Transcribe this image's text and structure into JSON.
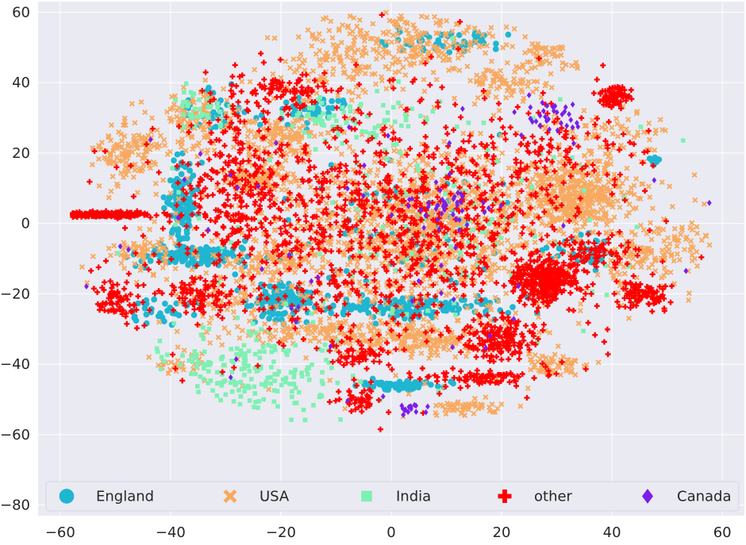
{
  "chart_data": {
    "type": "scatter",
    "title": "",
    "xlabel": "",
    "ylabel": "",
    "xlim": [
      -64,
      64
    ],
    "ylim": [
      -83,
      63
    ],
    "xticks": [
      -60,
      -40,
      -20,
      0,
      20,
      40,
      60
    ],
    "yticks": [
      -80,
      -60,
      -40,
      -20,
      0,
      20,
      40,
      60
    ],
    "xtick_labels": [
      "−60",
      "−40",
      "−20",
      "0",
      "20",
      "40",
      "60"
    ],
    "ytick_labels": [
      "−80",
      "−60",
      "−40",
      "−20",
      "0",
      "20",
      "40",
      "60"
    ],
    "background": "#eaeaf2",
    "grid": true,
    "legend_position": "bottom",
    "series": [
      {
        "name": "England",
        "color": "#1fb6d1",
        "marker": "circle",
        "clusters": [
          {
            "cx": -38,
            "cy": 5,
            "sx": 1.3,
            "sy": 6,
            "n": 120
          },
          {
            "cx": -35,
            "cy": -9,
            "sx": 5,
            "sy": 1.5,
            "n": 140
          },
          {
            "cx": -20,
            "cy": -22,
            "sx": 2.5,
            "sy": 2.5,
            "n": 120
          },
          {
            "cx": 2,
            "cy": -24,
            "sx": 9,
            "sy": 1.5,
            "n": 160
          },
          {
            "cx": 2,
            "cy": -46,
            "sx": 4,
            "sy": 0.6,
            "n": 60
          },
          {
            "cx": 10,
            "cy": 52,
            "sx": 6,
            "sy": 2,
            "n": 50
          },
          {
            "cx": -14,
            "cy": 32,
            "sx": 3,
            "sy": 2,
            "n": 40
          },
          {
            "cx": -32,
            "cy": 32,
            "sx": 3,
            "sy": 3,
            "n": 40
          },
          {
            "cx": 48,
            "cy": 18,
            "sx": 0.6,
            "sy": 0.6,
            "n": 12
          },
          {
            "cx": 35,
            "cy": -8,
            "sx": 3,
            "sy": 2,
            "n": 40
          },
          {
            "cx": -42,
            "cy": -25,
            "sx": 3,
            "sy": 2,
            "n": 30
          },
          {
            "cx": 3,
            "cy": 0,
            "sx": 12,
            "sy": 10,
            "n": 80
          }
        ]
      },
      {
        "name": "USA",
        "color": "#f8a95f",
        "marker": "x",
        "clusters": [
          {
            "cx": 5,
            "cy": 0,
            "sx": 12,
            "sy": 11,
            "n": 900
          },
          {
            "cx": 34,
            "cy": 8,
            "sx": 5,
            "sy": 5,
            "n": 420
          },
          {
            "cx": -48,
            "cy": 20,
            "sx": 4,
            "sy": 4,
            "n": 140
          },
          {
            "cx": -24,
            "cy": 12,
            "sx": 3,
            "sy": 2,
            "n": 110
          },
          {
            "cx": -20,
            "cy": 24,
            "sx": 4,
            "sy": 3,
            "n": 120
          },
          {
            "cx": -35,
            "cy": 30,
            "sx": 3,
            "sy": 4,
            "n": 100
          },
          {
            "cx": 3,
            "cy": 52,
            "sx": 8,
            "sy": 5,
            "n": 220
          },
          {
            "cx": -12,
            "cy": -31,
            "sx": 6,
            "sy": 1.5,
            "n": 120
          },
          {
            "cx": 5,
            "cy": -33,
            "sx": 5,
            "sy": 2.5,
            "n": 160
          },
          {
            "cx": 14,
            "cy": -52,
            "sx": 3,
            "sy": 1.2,
            "n": 50
          },
          {
            "cx": 28,
            "cy": 48,
            "sx": 3,
            "sy": 2,
            "n": 50
          },
          {
            "cx": -20,
            "cy": -10,
            "sx": 3,
            "sy": 2,
            "n": 80
          },
          {
            "cx": 45,
            "cy": -10,
            "sx": 4,
            "sy": 3,
            "n": 80
          },
          {
            "cx": 30,
            "cy": -40,
            "sx": 3,
            "sy": 2,
            "n": 60
          },
          {
            "cx": 20,
            "cy": 40,
            "sx": 5,
            "sy": 3,
            "n": 80
          },
          {
            "cx": -45,
            "cy": -8,
            "sx": 4,
            "sy": 2,
            "n": 50
          },
          {
            "cx": -40,
            "cy": -40,
            "sx": 3,
            "sy": 2,
            "n": 40
          },
          {
            "cx": 52,
            "cy": -5,
            "sx": 3,
            "sy": 4,
            "n": 50
          },
          {
            "cx": -28,
            "cy": -20,
            "sx": 6,
            "sy": 6,
            "n": 100
          },
          {
            "cx": 40,
            "cy": 25,
            "sx": 6,
            "sy": 4,
            "n": 60
          },
          {
            "cx": -10,
            "cy": 45,
            "sx": 6,
            "sy": 4,
            "n": 100
          },
          {
            "cx": 0,
            "cy": 0,
            "sx": 40,
            "sy": 30,
            "n": 500
          }
        ]
      },
      {
        "name": "India",
        "color": "#7ff0b3",
        "marker": "square",
        "clusters": [
          {
            "cx": -25,
            "cy": -42,
            "sx": 8,
            "sy": 6,
            "n": 220
          },
          {
            "cx": -35,
            "cy": 33,
            "sx": 3,
            "sy": 3,
            "n": 40
          },
          {
            "cx": -12,
            "cy": 28,
            "sx": 3,
            "sy": 3,
            "n": 40
          },
          {
            "cx": 0,
            "cy": 30,
            "sx": 6,
            "sy": 4,
            "n": 40
          },
          {
            "cx": 5,
            "cy": 0,
            "sx": 14,
            "sy": 12,
            "n": 80
          },
          {
            "cx": 0,
            "cy": 0,
            "sx": 35,
            "sy": 28,
            "n": 60
          }
        ]
      },
      {
        "name": "other",
        "color": "#ff0000",
        "marker": "plus",
        "clusters": [
          {
            "cx": 0,
            "cy": 0,
            "sx": 15,
            "sy": 14,
            "n": 700
          },
          {
            "cx": 28,
            "cy": -16,
            "sx": 3,
            "sy": 3,
            "n": 320
          },
          {
            "cx": -53,
            "cy": 2.5,
            "sx": 5,
            "sy": 0.4,
            "n": 260
          },
          {
            "cx": -28,
            "cy": 10,
            "sx": 5,
            "sy": 10,
            "n": 220
          },
          {
            "cx": 20,
            "cy": -33,
            "sx": 3,
            "sy": 3,
            "n": 150
          },
          {
            "cx": 40,
            "cy": 36,
            "sx": 1.5,
            "sy": 1.5,
            "n": 80
          },
          {
            "cx": 45,
            "cy": -20,
            "sx": 2.5,
            "sy": 2,
            "n": 90
          },
          {
            "cx": -50,
            "cy": -22,
            "sx": 3,
            "sy": 3,
            "n": 90
          },
          {
            "cx": -35,
            "cy": -20,
            "sx": 3,
            "sy": 3,
            "n": 80
          },
          {
            "cx": 38,
            "cy": -8,
            "sx": 3,
            "sy": 2,
            "n": 60
          },
          {
            "cx": -6,
            "cy": -37,
            "sx": 3,
            "sy": 2,
            "n": 60
          },
          {
            "cx": 0,
            "cy": 0,
            "sx": 40,
            "sy": 30,
            "n": 400
          },
          {
            "cx": 16,
            "cy": -44,
            "sx": 5,
            "sy": 1,
            "n": 80
          },
          {
            "cx": -6,
            "cy": -50,
            "sx": 2,
            "sy": 2,
            "n": 40
          },
          {
            "cx": 28,
            "cy": 20,
            "sx": 8,
            "sy": 5,
            "n": 100
          },
          {
            "cx": -20,
            "cy": 37,
            "sx": 6,
            "sy": 3,
            "n": 100
          }
        ]
      },
      {
        "name": "Canada",
        "color": "#7b1fe8",
        "marker": "diamond",
        "clusters": [
          {
            "cx": 30,
            "cy": 30,
            "sx": 3,
            "sy": 2,
            "n": 30
          },
          {
            "cx": 10,
            "cy": 5,
            "sx": 4,
            "sy": 3,
            "n": 40
          },
          {
            "cx": 4,
            "cy": -53,
            "sx": 1.5,
            "sy": 0.8,
            "n": 15
          },
          {
            "cx": 0,
            "cy": 0,
            "sx": 30,
            "sy": 25,
            "n": 60
          }
        ]
      }
    ]
  }
}
